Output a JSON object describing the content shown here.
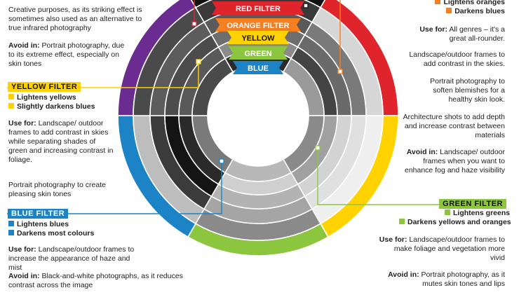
{
  "colors": {
    "red": "#e0242b",
    "orange": "#f47f20",
    "yellow": "#ffd200",
    "green": "#8cc63f",
    "blue": "#1c84c6",
    "purple": "#6a2c91"
  },
  "left": {
    "intro": "Creative purposes, as its striking effect is sometimes also used as an alternative to true infrared photography",
    "red_avoid_label": "Avoid in:",
    "red_avoid_text": "Portrait photography, due to its extreme effect, especially on skin tones",
    "yellow": {
      "title": "YELLOW FILTER",
      "bullets": [
        "Lightens yellows",
        "Slightly darkens blues"
      ],
      "use_label": "Use for:",
      "use_text": "Landscape/ outdoor frames to add contrast in skies while separating shades of green and increasing contrast in foliage.",
      "portrait_text": "Portrait photography to create pleasing skin tones"
    },
    "blue": {
      "title": "BLUE FILTER",
      "bullets": [
        "Lightens blues",
        "Darkens most colours"
      ],
      "use_label": "Use for:",
      "use_text": "Landscape/outdoor frames to increase the appearance of haze and mist",
      "avoid_label": "Avoid in:",
      "avoid_text": "Black-and-white photographs, as it reduces contrast across the image"
    }
  },
  "right": {
    "orange_bullets": [
      "Lightens oranges",
      "Darkens blues"
    ],
    "use_label": "Use for:",
    "use_text": "All genres – it's a great all-rounder.",
    "p1": "Landscape/outdoor frames to add contrast in the skies.",
    "p2": "Portrait photography to soften blemishes for a healthy skin look.",
    "p3": "Architecture shots to add depth and increase contrast between materials",
    "avoid_label": "Avoid in:",
    "avoid_text": "Landscape/ outdoor frames when you want to enhance fog and haze visibility",
    "green": {
      "title": "GREEN FILTER",
      "bullets": [
        "Lightens greens",
        "Darkens yellows and oranges"
      ],
      "use_label": "Use for:",
      "use_text": "Landscape/outdoor frames to make foliage and vegetation more vivid",
      "avoid_label": "Avoid in:",
      "avoid_text": "Portrait photography, as it mutes skin tones and lips"
    }
  },
  "wheel_labels": [
    "RED FILTER",
    "ORANGE FILTER",
    "YELLOW",
    "GREEN",
    "BLUE"
  ]
}
